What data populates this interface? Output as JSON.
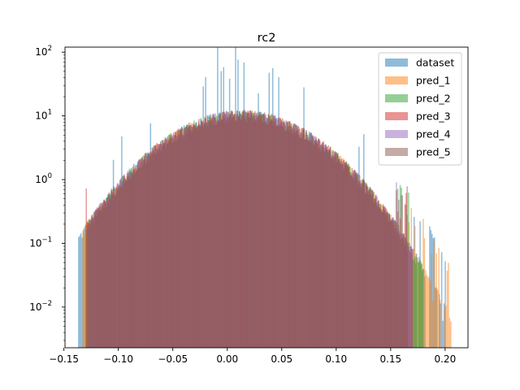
{
  "chart_data": {
    "type": "bar",
    "title": "rc2",
    "xlabel": "",
    "ylabel": "",
    "y_scale": "log",
    "xlim": [
      -0.149,
      0.221
    ],
    "ylim": [
      0.0023,
      120
    ],
    "x_ticks": [
      {
        "value": -0.15,
        "label": "−0.15"
      },
      {
        "value": -0.1,
        "label": "−0.10"
      },
      {
        "value": -0.05,
        "label": "−0.05"
      },
      {
        "value": 0.0,
        "label": "0.00"
      },
      {
        "value": 0.05,
        "label": "0.05"
      },
      {
        "value": 0.1,
        "label": "0.10"
      },
      {
        "value": 0.15,
        "label": "0.15"
      },
      {
        "value": 0.2,
        "label": "0.20"
      }
    ],
    "y_ticks": [
      {
        "value": 0.01,
        "base": "10",
        "exp": "−2"
      },
      {
        "value": 0.1,
        "base": "10",
        "exp": "−1"
      },
      {
        "value": 1,
        "base": "10",
        "exp": "0"
      },
      {
        "value": 10,
        "base": "10",
        "exp": "1"
      },
      {
        "value": 100,
        "base": "10",
        "exp": "2"
      }
    ],
    "grid": false,
    "legend_position": "top-right",
    "distribution": {
      "peak_density": 10,
      "peak_x": 0.013,
      "std": 0.05
    },
    "series": [
      {
        "name": "dataset",
        "color": "#1f77b4",
        "x_range": [
          -0.137,
          0.2
        ],
        "spiky": true
      },
      {
        "name": "pred_1",
        "color": "#ff7f0e",
        "x_range": [
          -0.133,
          0.205
        ],
        "spiky": false
      },
      {
        "name": "pred_2",
        "color": "#2ca02c",
        "x_range": [
          -0.13,
          0.18
        ],
        "spiky": false
      },
      {
        "name": "pred_3",
        "color": "#d62728",
        "x_range": [
          -0.13,
          0.17
        ],
        "spiky": false
      },
      {
        "name": "pred_4",
        "color": "#9467bd",
        "x_range": [
          -0.128,
          0.17
        ],
        "spiky": false
      },
      {
        "name": "pred_5",
        "color": "#8c564b",
        "x_range": [
          -0.128,
          0.165
        ],
        "spiky": false
      }
    ]
  }
}
